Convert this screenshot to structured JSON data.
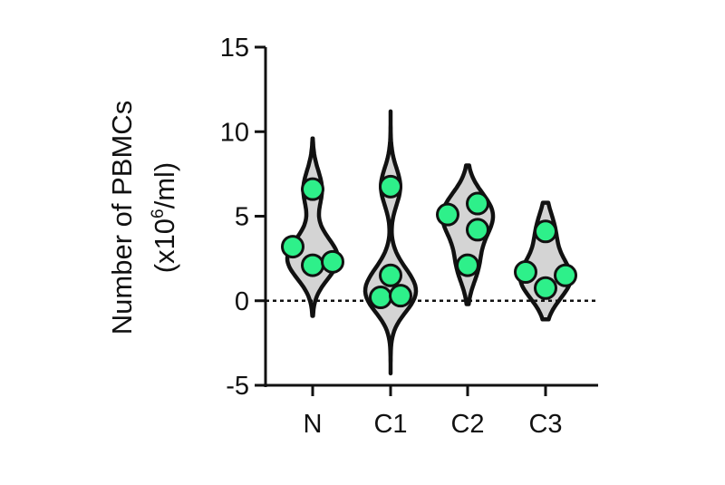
{
  "chart_data": {
    "type": "violin",
    "title": "",
    "xlabel": "",
    "ylabel_line1": "Number of PBMCs",
    "ylabel_line2_prefix": "(x10",
    "ylabel_line2_sup": "6",
    "ylabel_line2_suffix": "/ml)",
    "ylim": [
      -5,
      15
    ],
    "yticks": [
      -5,
      0,
      5,
      10,
      15
    ],
    "ytick_labels": [
      "-5",
      "0",
      "5",
      "10",
      "15"
    ],
    "reference_line": 0,
    "categories": [
      "N",
      "C1",
      "C2",
      "C3"
    ],
    "groups": [
      {
        "name": "N",
        "values": [
          6.6,
          3.2,
          2.1,
          2.3
        ],
        "violin_range": [
          -0.9,
          9.6
        ]
      },
      {
        "name": "C1",
        "values": [
          6.75,
          1.5,
          0.2,
          0.3
        ],
        "violin_range": [
          -4.3,
          11.2
        ]
      },
      {
        "name": "C2",
        "values": [
          5.1,
          5.75,
          4.2,
          2.1
        ],
        "violin_range": [
          -0.2,
          8.0
        ]
      },
      {
        "name": "C3",
        "values": [
          4.1,
          1.7,
          0.75,
          1.5
        ],
        "violin_range": [
          -1.1,
          5.8
        ]
      }
    ],
    "colors": {
      "point": "#2ef08a",
      "violin_fill": "#d4d4d4",
      "outline": "#111111"
    }
  }
}
